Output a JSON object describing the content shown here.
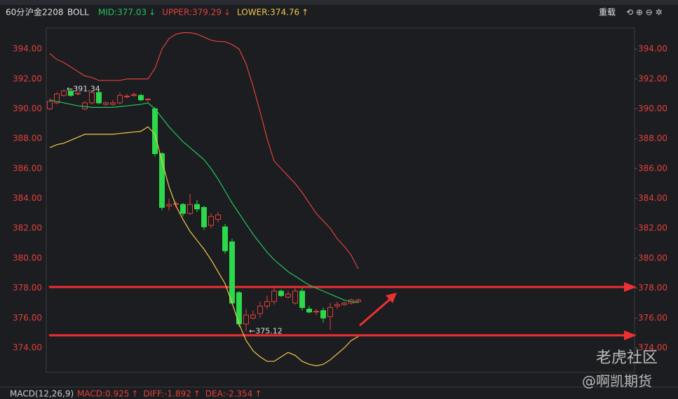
{
  "header": {
    "period": "60分",
    "symbol": "沪金2208",
    "indicator": "BOLL",
    "stats": [
      {
        "label": "MID:377.03",
        "arrow": "↓",
        "color": "#22c55e"
      },
      {
        "label": "UPPER:379.29",
        "arrow": "↓",
        "color": "#e0403a"
      },
      {
        "label": "LOWER:374.76",
        "arrow": "↑",
        "color": "#f2c84b"
      }
    ],
    "reload": "重载"
  },
  "chart_data": {
    "type": "candlestick",
    "categories": [
      null,
      null,
      null,
      null,
      null,
      null,
      null,
      null,
      null,
      null,
      null,
      null,
      null,
      null,
      null,
      null,
      null,
      null,
      null,
      null,
      null,
      null,
      null,
      null,
      null,
      null,
      null,
      null,
      null,
      null,
      null,
      null,
      null,
      null,
      null,
      null,
      null,
      null,
      null,
      null,
      null,
      null,
      null,
      null,
      null
    ],
    "candles": [
      [
        390.0,
        390.7,
        389.9,
        390.5
      ],
      [
        390.4,
        391.1,
        390.3,
        391.0
      ],
      [
        390.9,
        391.3,
        390.8,
        391.2
      ],
      [
        391.2,
        391.3,
        390.8,
        390.9
      ],
      [
        391.0,
        391.1,
        390.9,
        391.05
      ],
      [
        390.0,
        390.5,
        389.9,
        390.4
      ],
      [
        390.4,
        391.2,
        390.3,
        391.1
      ],
      [
        391.1,
        391.2,
        390.3,
        390.4
      ],
      [
        390.3,
        390.5,
        390.2,
        390.4
      ],
      [
        390.3,
        390.6,
        390.2,
        390.4
      ],
      [
        390.4,
        391.1,
        390.3,
        390.9
      ],
      [
        390.8,
        391.0,
        390.7,
        390.85
      ],
      [
        390.9,
        391.1,
        390.8,
        390.95
      ],
      [
        390.9,
        391.0,
        390.5,
        390.6
      ],
      [
        390.6,
        390.7,
        390.5,
        390.65
      ],
      [
        390.0,
        390.1,
        386.8,
        387.0
      ],
      [
        387.0,
        387.1,
        383.2,
        383.4
      ],
      [
        383.5,
        384.0,
        383.2,
        383.6
      ],
      [
        383.6,
        383.8,
        383.4,
        383.65
      ],
      [
        383.6,
        383.7,
        382.8,
        383.0
      ],
      [
        383.0,
        384.3,
        382.9,
        383.6
      ],
      [
        383.6,
        383.9,
        383.1,
        383.3
      ],
      [
        383.4,
        383.5,
        381.9,
        382.1
      ],
      [
        382.2,
        383.0,
        382.0,
        382.8
      ],
      [
        382.6,
        383.1,
        382.4,
        382.9
      ],
      [
        382.1,
        382.3,
        380.3,
        380.5
      ],
      [
        381.1,
        381.3,
        376.9,
        377.0
      ],
      [
        377.7,
        377.8,
        375.4,
        375.6
      ],
      [
        375.6,
        376.6,
        375.1,
        376.2
      ],
      [
        376.0,
        376.5,
        375.9,
        376.2
      ],
      [
        376.3,
        377.1,
        376.0,
        376.8
      ],
      [
        376.8,
        377.5,
        376.6,
        377.1
      ],
      [
        377.1,
        378.0,
        376.9,
        377.8
      ],
      [
        377.8,
        377.9,
        377.4,
        377.5
      ],
      [
        377.4,
        377.8,
        377.3,
        377.6
      ],
      [
        377.0,
        378.0,
        376.9,
        377.8
      ],
      [
        377.8,
        378.0,
        376.5,
        376.7
      ],
      [
        376.6,
        376.8,
        376.3,
        376.4
      ],
      [
        376.4,
        376.6,
        376.2,
        376.45
      ],
      [
        376.5,
        376.7,
        375.7,
        376.0
      ],
      [
        376.1,
        377.0,
        375.2,
        376.7
      ],
      [
        376.8,
        377.1,
        376.6,
        376.9
      ],
      [
        376.9,
        377.1,
        376.8,
        377.0
      ],
      [
        377.0,
        377.3,
        376.9,
        377.2
      ],
      [
        377.1,
        377.3,
        377.0,
        377.2
      ]
    ],
    "up_color": "#e0403a",
    "down_color": "#2bd94a",
    "series": [
      {
        "color": "#e0403a",
        "values": [
          393.7,
          393.3,
          393.1,
          392.8,
          392.5,
          392.2,
          392.1,
          391.9,
          391.9,
          391.9,
          391.9,
          392.0,
          392.0,
          392.0,
          392.0,
          392.7,
          394.0,
          394.7,
          395.0,
          395.1,
          395.1,
          395.0,
          394.8,
          394.6,
          394.5,
          394.5,
          394.3,
          394.0,
          393.0,
          391.5,
          389.8,
          388.0,
          386.5,
          386.0,
          385.5,
          385.0,
          384.4,
          383.7,
          383.0,
          382.5,
          382.0,
          381.3,
          380.8,
          380.2,
          379.29
        ]
      },
      {
        "color": "#22c55e",
        "values": [
          390.6,
          390.5,
          390.4,
          390.3,
          390.2,
          390.15,
          390.1,
          390.1,
          390.1,
          390.1,
          390.15,
          390.2,
          390.25,
          390.3,
          390.4,
          390.0,
          389.4,
          388.8,
          388.3,
          387.8,
          387.4,
          387.0,
          386.6,
          386.0,
          385.3,
          384.5,
          383.7,
          383.0,
          382.3,
          381.6,
          381.0,
          380.4,
          379.9,
          379.5,
          379.1,
          378.8,
          378.5,
          378.2,
          378.0,
          377.8,
          377.6,
          377.4,
          377.2,
          377.1,
          377.03
        ]
      },
      {
        "color": "#f2c84b",
        "values": [
          387.4,
          387.6,
          387.7,
          387.9,
          388.1,
          388.3,
          388.3,
          388.3,
          388.3,
          388.3,
          388.35,
          388.4,
          388.45,
          388.5,
          388.8,
          388.3,
          386.5,
          384.8,
          383.5,
          382.6,
          381.8,
          381.2,
          380.6,
          379.9,
          379.1,
          378.3,
          377.0,
          375.6,
          374.5,
          373.8,
          373.4,
          373.1,
          373.1,
          373.4,
          373.7,
          373.5,
          373.1,
          372.9,
          372.8,
          372.9,
          373.2,
          373.6,
          374.0,
          374.5,
          374.76
        ]
      }
    ],
    "ylim": [
      372.36,
      395.41
    ],
    "yticks": [
      {
        "value": 374,
        "label": "374.00"
      },
      {
        "value": 376,
        "label": "376.00"
      },
      {
        "value": 378,
        "label": "378.00"
      },
      {
        "value": 380,
        "label": "380.00"
      },
      {
        "value": 382,
        "label": "382.00"
      },
      {
        "value": 384,
        "label": "384.00"
      },
      {
        "value": 386,
        "label": "386.00"
      },
      {
        "value": 388,
        "label": "388.00"
      },
      {
        "value": 390,
        "label": "390.00"
      },
      {
        "value": 392,
        "label": "392.00"
      },
      {
        "value": 394,
        "label": "394.00"
      }
    ],
    "annotations": [
      "←391.34",
      "←375.12"
    ]
  },
  "macd": {
    "name": "MACD(12,26,9)",
    "stats": [
      {
        "label": "MACD:0.925",
        "arrow": "↑"
      },
      {
        "label": "DIFF:-1.892",
        "arrow": "↑"
      },
      {
        "label": "DEA:-2.354",
        "arrow": "↑"
      }
    ]
  },
  "watermark": {
    "community": "老虎社区",
    "author": "@啊凯期货"
  }
}
